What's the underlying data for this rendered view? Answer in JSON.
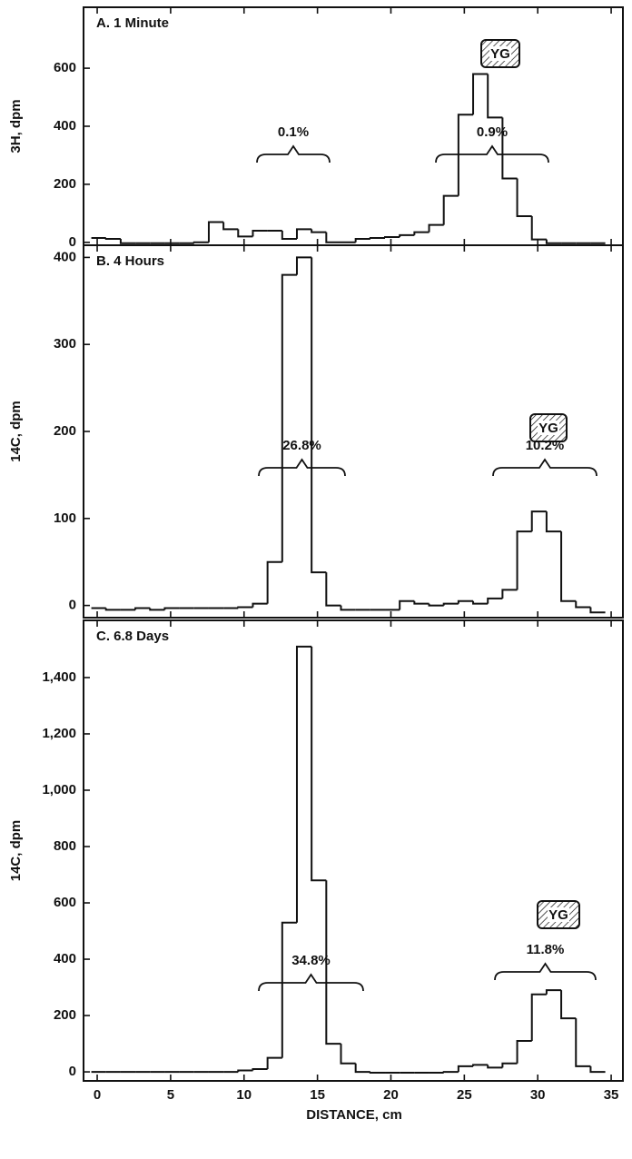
{
  "chart_data": [
    {
      "type": "histogram",
      "title": "A. 1 Minute",
      "ylabel": "3H, dpm",
      "bins": [
        -0.4,
        0.6,
        1.6,
        2.6,
        3.6,
        4.6,
        5.6,
        6.6,
        7.6,
        8.6,
        9.6,
        10.6,
        11.6,
        12.6,
        13.6,
        14.6,
        15.6,
        16.6,
        17.6,
        18.6,
        19.6,
        20.6,
        21.6,
        22.6,
        23.6,
        24.6,
        25.6,
        26.6,
        27.6,
        28.6,
        29.6,
        30.6,
        31.6,
        32.6,
        33.6,
        34.6
      ],
      "values": [
        15,
        12,
        -3,
        -3,
        -3,
        -3,
        -3,
        0,
        70,
        45,
        20,
        40,
        40,
        12,
        45,
        35,
        0,
        0,
        12,
        15,
        18,
        25,
        35,
        60,
        160,
        440,
        580,
        430,
        220,
        90,
        10,
        -3,
        -3,
        -3,
        -3
      ],
      "xlim": [
        -0.93,
        35.8
      ],
      "xticks": [
        0,
        5,
        10,
        15,
        20,
        25,
        30,
        35
      ],
      "ylim": [
        -10,
        810
      ],
      "yticks": [
        0,
        200,
        400,
        600
      ],
      "annotations": [
        "0.1%",
        "0.9%"
      ],
      "marker": "YG"
    },
    {
      "type": "histogram",
      "title": "B. 4 Hours",
      "ylabel": "14C, dpm",
      "bins": [
        -0.4,
        0.6,
        1.6,
        2.6,
        3.6,
        4.6,
        5.6,
        6.6,
        7.6,
        8.6,
        9.6,
        10.6,
        11.6,
        12.6,
        13.6,
        14.6,
        15.6,
        16.6,
        17.6,
        18.6,
        19.6,
        20.6,
        21.6,
        22.6,
        23.6,
        24.6,
        25.6,
        26.6,
        27.6,
        28.6,
        29.6,
        30.6,
        31.6,
        32.6,
        33.6,
        34.6
      ],
      "values": [
        -3,
        -5,
        -5,
        -3,
        -5,
        -3,
        -3,
        -3,
        -3,
        -3,
        -2,
        2,
        50,
        380,
        400,
        38,
        0,
        -5,
        -5,
        -5,
        -5,
        5,
        2,
        0,
        2,
        5,
        2,
        8,
        18,
        85,
        108,
        85,
        5,
        -2,
        -8
      ],
      "xlim": [
        -0.93,
        35.8
      ],
      "xticks": [
        0,
        5,
        10,
        15,
        20,
        25,
        30,
        35
      ],
      "ylim": [
        -14,
        414
      ],
      "yticks": [
        0,
        100,
        200,
        300,
        400
      ],
      "annotations": [
        "26.8%",
        "10.2%"
      ],
      "marker": "YG"
    },
    {
      "type": "histogram",
      "title": "C. 6.8 Days",
      "ylabel": "14C, dpm",
      "xlabel": "DISTANCE, cm",
      "bins": [
        -0.4,
        0.6,
        1.6,
        2.6,
        3.6,
        4.6,
        5.6,
        6.6,
        7.6,
        8.6,
        9.6,
        10.6,
        11.6,
        12.6,
        13.6,
        14.6,
        15.6,
        16.6,
        17.6,
        18.6,
        19.6,
        20.6,
        21.6,
        22.6,
        23.6,
        24.6,
        25.6,
        26.6,
        27.6,
        28.6,
        29.6,
        30.6,
        31.6,
        32.6,
        33.6,
        34.6
      ],
      "values": [
        0,
        0,
        0,
        0,
        0,
        0,
        0,
        0,
        0,
        0,
        5,
        10,
        50,
        530,
        1510,
        680,
        100,
        30,
        0,
        -3,
        -3,
        -3,
        -3,
        -3,
        0,
        20,
        25,
        15,
        30,
        110,
        275,
        290,
        190,
        20,
        0
      ],
      "xlim": [
        -0.93,
        35.8
      ],
      "xticks": [
        0,
        5,
        10,
        15,
        20,
        25,
        30,
        35
      ],
      "ylim": [
        -32,
        1603
      ],
      "yticks": [
        0,
        200,
        400,
        600,
        800,
        {
          "value": 1000,
          "label": "1,000"
        },
        {
          "value": 1200,
          "label": "1,200"
        },
        {
          "value": 1400,
          "label": "1,400"
        }
      ],
      "annotations": [
        "34.8%",
        "11.8%"
      ],
      "marker": "YG"
    }
  ]
}
